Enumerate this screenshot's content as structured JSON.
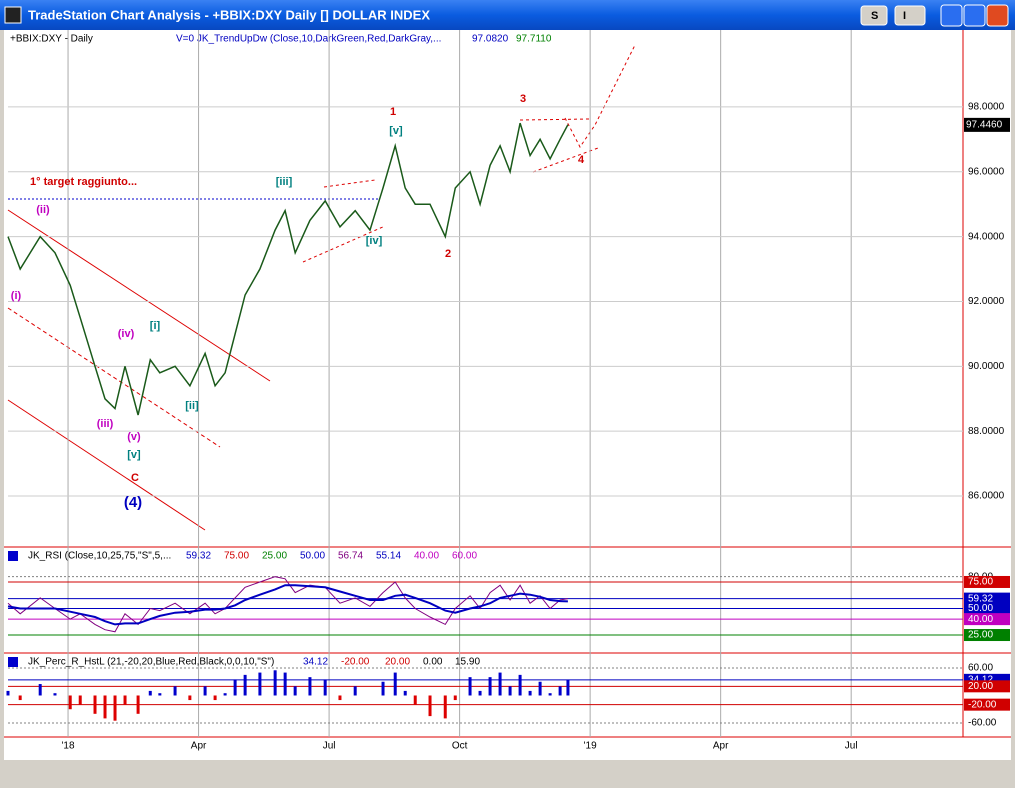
{
  "window": {
    "title": "TradeStation Chart Analysis - +BBIX:DXY Daily [] DOLLAR INDEX",
    "buttons": [
      "S",
      "I"
    ]
  },
  "price_panel": {
    "symbol_label": "+BBIX:DXY - Daily",
    "indicator_label": "V=0  JK_TrendUpDw (Close,10,DarkGreen,Red,DarkGray,...",
    "indicator_values": [
      "97.0820",
      "97.7110"
    ],
    "last_price": {
      "value": 97.446,
      "label": "97.4460"
    },
    "xlim": [
      -1.38,
      20.57
    ],
    "xticks": [
      {
        "value": 0,
        "label": "'18"
      },
      {
        "value": 3,
        "label": "Apr"
      },
      {
        "value": 6,
        "label": "Jul"
      },
      {
        "value": 9,
        "label": "Oct"
      },
      {
        "value": 12,
        "label": "'19"
      },
      {
        "value": 15,
        "label": "Apr"
      },
      {
        "value": 18,
        "label": "Jul"
      }
    ],
    "ylim": [
      84.49,
      100.31
    ],
    "yticks": [
      {
        "value": 86,
        "label": "86.0000"
      },
      {
        "value": 88,
        "label": "88.0000"
      },
      {
        "value": 90,
        "label": "90.0000"
      },
      {
        "value": 92,
        "label": "92.0000"
      },
      {
        "value": 94,
        "label": "94.0000"
      },
      {
        "value": 96,
        "label": "96.0000"
      },
      {
        "value": 98,
        "label": "98.0000"
      }
    ],
    "color": "#1a5a1a",
    "x": [
      -1.38,
      -1.1,
      -0.64,
      -0.3,
      0.05,
      0.28,
      0.62,
      0.85,
      1.08,
      1.31,
      1.61,
      1.89,
      2.11,
      2.46,
      2.8,
      3.15,
      3.38,
      3.61,
      3.84,
      4.07,
      4.41,
      4.76,
      4.99,
      5.22,
      5.56,
      5.91,
      6.25,
      6.6,
      6.94,
      7.24,
      7.52,
      7.75,
      7.98,
      8.32,
      8.67,
      8.9,
      9.24,
      9.47,
      9.7,
      9.93,
      10.16,
      10.39,
      10.62,
      10.85,
      11.08,
      11.31,
      11.49
    ],
    "close": [
      94,
      93,
      94,
      93.5,
      92.5,
      91.5,
      90,
      89,
      88.7,
      90,
      88.5,
      90.2,
      89.8,
      90,
      89.4,
      90.4,
      89.4,
      89.8,
      91,
      92.2,
      93,
      94.2,
      94.8,
      93.5,
      94.5,
      95.1,
      94.3,
      94.8,
      94.2,
      95.5,
      96.8,
      95.5,
      95,
      95,
      94,
      95.5,
      96,
      95,
      96.2,
      96.8,
      96,
      97.5,
      96.5,
      97,
      96.4,
      97,
      97.45
    ],
    "annotations": [
      {
        "text": "1° target raggiunto...",
        "color": "#d00000"
      },
      {
        "text": "(ii)",
        "color": "#c000c0"
      },
      {
        "text": "(i)",
        "color": "#c000c0"
      },
      {
        "text": "(iii)",
        "color": "#c000c0"
      },
      {
        "text": "(iv)",
        "color": "#c000c0"
      },
      {
        "text": "(v)",
        "color": "#c000c0"
      },
      {
        "text": "[i]",
        "color": "#008080"
      },
      {
        "text": "[ii]",
        "color": "#008080"
      },
      {
        "text": "[v]",
        "color": "#008080"
      },
      {
        "text": "C",
        "color": "#d00000"
      },
      {
        "text": "(4)",
        "color": "#0000c0"
      },
      {
        "text": "[iii]",
        "color": "#008080"
      },
      {
        "text": "[iv]",
        "color": "#008080"
      },
      {
        "text": "1",
        "color": "#d00000"
      },
      {
        "text": "[v]",
        "color": "#008080"
      },
      {
        "text": "2",
        "color": "#d00000"
      },
      {
        "text": "3",
        "color": "#d00000"
      },
      {
        "text": "4",
        "color": "#d00000"
      }
    ]
  },
  "rsi_panel": {
    "label": "JK_RSI (Close,10,25,75,\"S\",5,...",
    "header_values": [
      {
        "text": "59.32",
        "color": "#0000c0"
      },
      {
        "text": "75.00",
        "color": "#d00000"
      },
      {
        "text": "25.00",
        "color": "#008000"
      },
      {
        "text": "50.00",
        "color": "#0000c0"
      },
      {
        "text": "56.74",
        "color": "#800080"
      },
      {
        "text": "55.14",
        "color": "#0000c0"
      },
      {
        "text": "40.00",
        "color": "#c000c0"
      },
      {
        "text": "60.00",
        "color": "#c000c0"
      }
    ],
    "ylim": [
      15.6,
      91
    ],
    "levels": [
      {
        "value": 80,
        "label": "80.00",
        "color": "#808080"
      },
      {
        "value": 75,
        "label": "75.00",
        "color": "#d00000"
      },
      {
        "value": 59.32,
        "label": "59.32",
        "color": "#0000c0"
      },
      {
        "value": 50,
        "label": "50.00",
        "color": "#0000c0"
      },
      {
        "value": 40,
        "label": "40.00",
        "color": "#c000c0"
      },
      {
        "value": 25,
        "label": "25.00",
        "color": "#008000"
      }
    ],
    "series": [
      {
        "name": "RSI",
        "color": "#800080",
        "values": [
          55,
          45,
          60,
          50,
          40,
          45,
          35,
          30,
          28,
          45,
          35,
          50,
          48,
          55,
          45,
          55,
          45,
          50,
          60,
          70,
          75,
          80,
          78,
          65,
          72,
          70,
          55,
          60,
          52,
          65,
          75,
          60,
          50,
          42,
          35,
          50,
          62,
          50,
          65,
          72,
          58,
          72,
          55,
          62,
          50,
          58,
          59.32
        ]
      },
      {
        "name": "Average",
        "color": "#0000c0",
        "values": [
          52,
          50,
          50,
          50,
          47,
          45,
          42,
          38,
          35,
          36,
          36,
          40,
          43,
          46,
          47,
          49,
          49,
          50,
          53,
          58,
          63,
          68,
          72,
          72,
          71,
          70,
          66,
          62,
          58,
          58,
          62,
          63,
          60,
          55,
          48,
          46,
          50,
          52,
          55,
          60,
          62,
          64,
          63,
          61,
          58,
          57,
          56.74
        ]
      }
    ]
  },
  "percr_panel": {
    "label": "JK_Perc_R_HstL (21,-20,20,Blue,Red,Black,0,0,10,\"S\")",
    "header_values": [
      {
        "text": "34.12",
        "color": "#0000c0"
      },
      {
        "text": "-20.00",
        "color": "#d00000"
      },
      {
        "text": "20.00",
        "color": "#d00000"
      },
      {
        "text": "0.00",
        "color": "#000000"
      },
      {
        "text": "15.90",
        "color": "#000000"
      }
    ],
    "ylim": [
      -79.7,
      73.1
    ],
    "levels": [
      {
        "value": 60,
        "label": "60.00",
        "color": "#808080"
      },
      {
        "value": 34.12,
        "label": "34.12",
        "color": "#0000c0"
      },
      {
        "value": 20,
        "label": "20.00",
        "color": "#d00000"
      },
      {
        "value": -20,
        "label": "-20.00",
        "color": "#d00000"
      },
      {
        "value": -60,
        "label": "-60.00",
        "color": "#808080"
      }
    ],
    "values": [
      10,
      -10,
      25,
      5,
      -30,
      -20,
      -40,
      -50,
      -55,
      -20,
      -40,
      10,
      5,
      20,
      -10,
      20,
      -10,
      5,
      35,
      45,
      50,
      55,
      50,
      20,
      40,
      35,
      -10,
      20,
      0,
      30,
      50,
      10,
      -20,
      -45,
      -50,
      -10,
      40,
      10,
      40,
      50,
      20,
      45,
      10,
      30,
      5,
      20,
      34.12
    ]
  }
}
